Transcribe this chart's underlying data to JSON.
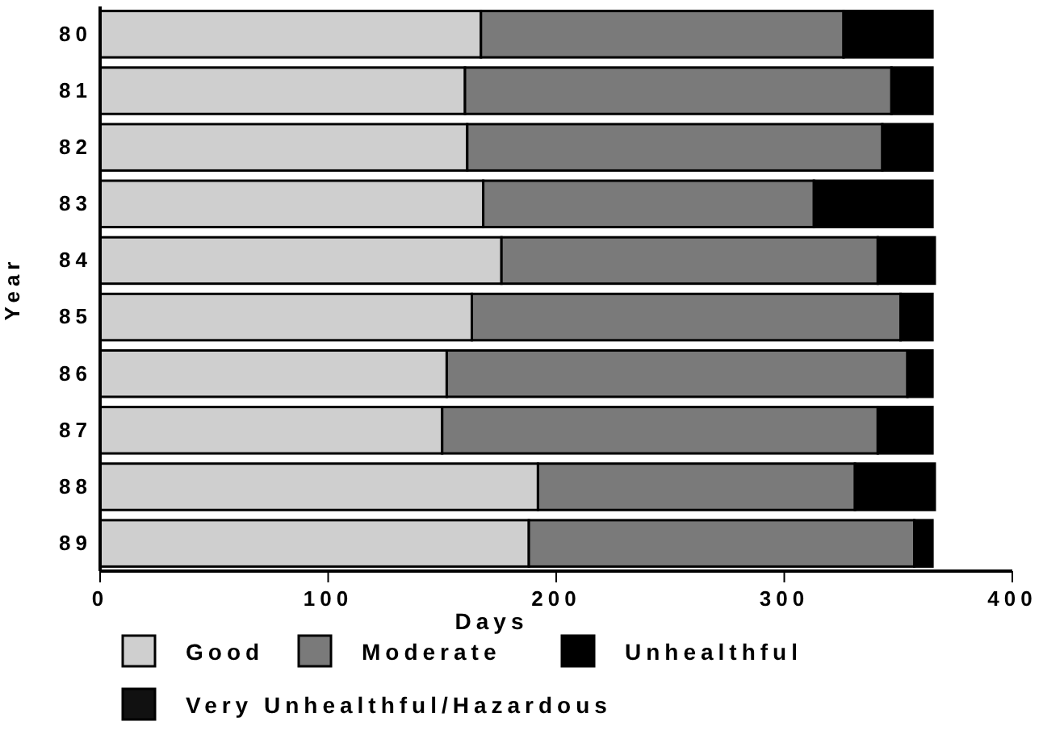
{
  "chart_data": {
    "type": "bar",
    "orientation": "horizontal",
    "stacked": true,
    "xlabel": "Days",
    "ylabel": "Year",
    "categories": [
      "80",
      "81",
      "82",
      "83",
      "84",
      "85",
      "86",
      "87",
      "88",
      "89"
    ],
    "series": [
      {
        "name": "Good",
        "color": "#cfcfcf",
        "values": [
          167,
          160,
          161,
          168,
          176,
          163,
          152,
          150,
          192,
          188
        ]
      },
      {
        "name": "Moderate",
        "color": "#7a7a7a",
        "values": [
          159,
          187,
          182,
          145,
          165,
          188,
          202,
          191,
          139,
          169
        ]
      },
      {
        "name": "Unhealthful",
        "color": "#000000",
        "values": [
          39,
          18,
          22,
          52,
          25,
          14,
          11,
          24,
          35,
          8
        ]
      },
      {
        "name": "Very Unhealthful/Hazardous",
        "color": "#111111",
        "values": [
          null,
          null,
          null,
          null,
          null,
          null,
          null,
          null,
          null,
          null
        ]
      }
    ],
    "xlim": [
      0,
      400
    ],
    "xticks": [
      0,
      100,
      200,
      300,
      400
    ],
    "legend": "bottom",
    "grid": false
  }
}
